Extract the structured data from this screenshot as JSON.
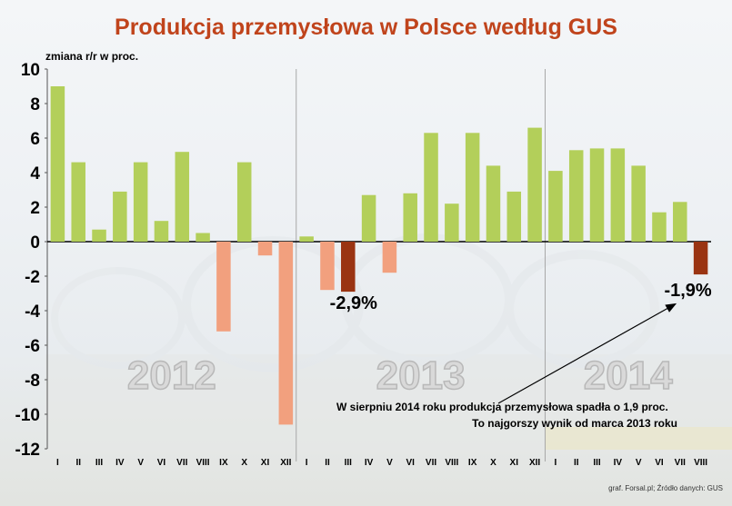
{
  "title": "Produkcja przemysłowa w Polsce według GUS",
  "chart_data": {
    "type": "bar",
    "ylabel": "zmiana r/r w proc.",
    "ylim": [
      -12,
      10
    ],
    "yticks": [
      "10",
      "8",
      "6",
      "4",
      "2",
      "0",
      "-2",
      "-4",
      "-6",
      "-8",
      "-10",
      "-12"
    ],
    "ytick_values": [
      10,
      8,
      6,
      4,
      2,
      0,
      -2,
      -4,
      -6,
      -8,
      -10,
      -12
    ],
    "categories": [
      "I",
      "II",
      "III",
      "IV",
      "V",
      "VI",
      "VII",
      "VIII",
      "IX",
      "X",
      "XI",
      "XII",
      "I",
      "II",
      "III",
      "IV",
      "V",
      "VI",
      "VII",
      "VIII",
      "IX",
      "X",
      "XI",
      "XII",
      "I",
      "II",
      "III",
      "IV",
      "V",
      "VI",
      "VII",
      "VIII"
    ],
    "values": [
      9.0,
      4.6,
      0.7,
      2.9,
      4.6,
      1.2,
      5.2,
      0.5,
      -5.2,
      4.6,
      -0.8,
      -10.6,
      0.3,
      -2.8,
      -2.9,
      2.7,
      -1.8,
      2.8,
      6.3,
      2.2,
      6.3,
      4.4,
      2.9,
      6.6,
      4.1,
      5.3,
      5.4,
      5.4,
      4.4,
      1.7,
      2.3,
      -1.9
    ],
    "highlighted_indices": [
      14,
      31
    ],
    "years": [
      "2012",
      "2013",
      "2014"
    ],
    "colors": {
      "positive": "#b3cf5a",
      "negative": "#f2a07e",
      "highlight": "#9a3412"
    },
    "annotations": {
      "left_callout": "-2,9%",
      "right_callout": "-1,9%",
      "note_line1": "W sierpniu 2014 roku produkcja przemysłowa spadła o 1,9 proc.",
      "note_line2": "To najgorszy wynik od marca 2013 roku"
    }
  },
  "source": "graf. Forsal.pl; Źródło danych: GUS"
}
